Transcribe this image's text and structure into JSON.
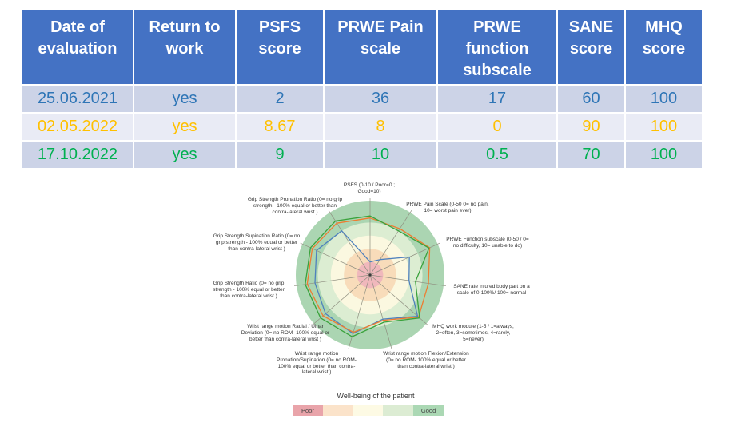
{
  "table": {
    "columns": [
      "Date of evaluation",
      "Return to work",
      "PSFS score",
      "PRWE Pain scale",
      "PRWE function subscale",
      "SANE score",
      "MHQ score"
    ],
    "rows": [
      {
        "cells": [
          "25.06.2021",
          "yes",
          "2",
          "36",
          "17",
          "60",
          "100"
        ],
        "color": "#2E75B6"
      },
      {
        "cells": [
          "02.05.2022",
          "yes",
          "8.67",
          "8",
          "0",
          "90",
          "100"
        ],
        "color": "#FFC000"
      },
      {
        "cells": [
          "17.10.2022",
          "yes",
          "9",
          "10",
          "0.5",
          "70",
          "100"
        ],
        "color": "#00B050"
      }
    ],
    "header_bg": "#4472C4",
    "header_text_color": "#FFFFFF",
    "band_colors": [
      "#CCD3E7",
      "#E9EBF5"
    ]
  },
  "chart_data": {
    "type": "radar",
    "title": "",
    "axes": [
      "PSFS (0-10 / Poor=0 ; Good=10)",
      "PRWE Pain Scale (0-50 0= no pain, 10= worst pain ever)",
      "PRWE Function subscale (0-50 / 0= no difficulty, 10= unable to do)",
      "SANE rate injured body part on a scale of 0-100%/ 100= normal",
      "MHQ work module (1-5 / 1=always, 2=often, 3=sometimes, 4=rarely, 5=never)",
      "Wrist range motion Flexion/Extension (0= no ROM- 100% equal or better than contra-lateral wrist )",
      "Wrist range motion Pronation/Supination (0= no ROM- 100% equal or better than contra-lateral wrist )",
      "Wrist range motion Radial / Ulnar Deviation (0= no ROM- 100% equal or better than contra-lateral wrist )",
      "Grip Strength Ratio (0= no grip strength - 100% equal or better than contra-lateral wrist )",
      "Grip Strength Supination Ratio (0= no grip strength - 100% equal or better than contra-lateral wrist )",
      "Grip Strength Pronation Ratio (0= no grip strength - 100% equal or better than contra-lateral wrist )"
    ],
    "scale": {
      "min": 0,
      "max": 1,
      "note": "normalized well-being, outer edge = good"
    },
    "series": [
      {
        "name": "25.06.2021",
        "color": "#4F81BD",
        "values": [
          0.2,
          0.28,
          0.66,
          0.6,
          0.96,
          0.7,
          0.93,
          0.9,
          0.85,
          0.9,
          0.8
        ]
      },
      {
        "name": "02.05.2022",
        "color": "#ED7D31",
        "values": [
          0.87,
          0.84,
          1.0,
          0.9,
          0.98,
          0.72,
          0.91,
          0.95,
          0.97,
          0.97,
          0.94
        ]
      },
      {
        "name": "17.10.2022",
        "color": "#3AA23C",
        "values": [
          0.9,
          0.8,
          0.99,
          0.7,
          1.0,
          0.75,
          0.98,
          1.0,
          1.0,
          1.0,
          0.98
        ]
      }
    ],
    "ring_colors_outer_to_inner": [
      "#ABD5B2",
      "#DCEDD2",
      "#FBF8E0",
      "#F8DCBA",
      "#F0B8BC"
    ],
    "legend": {
      "title": "Well-being of the patient",
      "segments": [
        {
          "label": "Poor",
          "color": "#E9A4AA"
        },
        {
          "label": "",
          "color": "#FBE3CA"
        },
        {
          "label": "",
          "color": "#FDFAE4"
        },
        {
          "label": "",
          "color": "#DCECD3"
        },
        {
          "label": "Good",
          "color": "#ABD8B4"
        }
      ]
    }
  }
}
